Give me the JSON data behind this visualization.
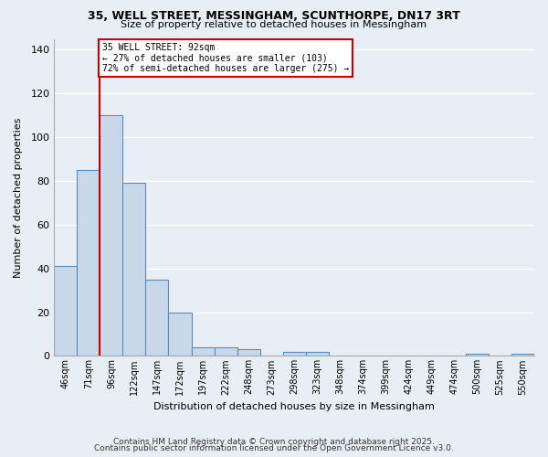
{
  "title1": "35, WELL STREET, MESSINGHAM, SCUNTHORPE, DN17 3RT",
  "title2": "Size of property relative to detached houses in Messingham",
  "xlabel": "Distribution of detached houses by size in Messingham",
  "ylabel": "Number of detached properties",
  "bar_color": "#c8d8e8",
  "bar_edge_color": "#5b8db8",
  "background_color": "#e8eef5",
  "grid_color": "#ffffff",
  "categories": [
    "46sqm",
    "71sqm",
    "96sqm",
    "122sqm",
    "147sqm",
    "172sqm",
    "197sqm",
    "222sqm",
    "248sqm",
    "273sqm",
    "298sqm",
    "323sqm",
    "348sqm",
    "374sqm",
    "399sqm",
    "424sqm",
    "449sqm",
    "474sqm",
    "500sqm",
    "525sqm",
    "550sqm"
  ],
  "values": [
    41,
    85,
    110,
    79,
    35,
    20,
    4,
    4,
    3,
    0,
    2,
    2,
    0,
    0,
    0,
    0,
    0,
    0,
    1,
    0,
    1
  ],
  "ylim": [
    0,
    145
  ],
  "yticks": [
    0,
    20,
    40,
    60,
    80,
    100,
    120,
    140
  ],
  "red_line_x": 1.5,
  "marker_label": "35 WELL STREET: 92sqm",
  "annotation_line1": "← 27% of detached houses are smaller (103)",
  "annotation_line2": "72% of semi-detached houses are larger (275) →",
  "footer1": "Contains HM Land Registry data © Crown copyright and database right 2025.",
  "footer2": "Contains public sector information licensed under the Open Government Licence v3.0.",
  "red_line_color": "#cc0000",
  "annotation_box_color": "#cc0000"
}
